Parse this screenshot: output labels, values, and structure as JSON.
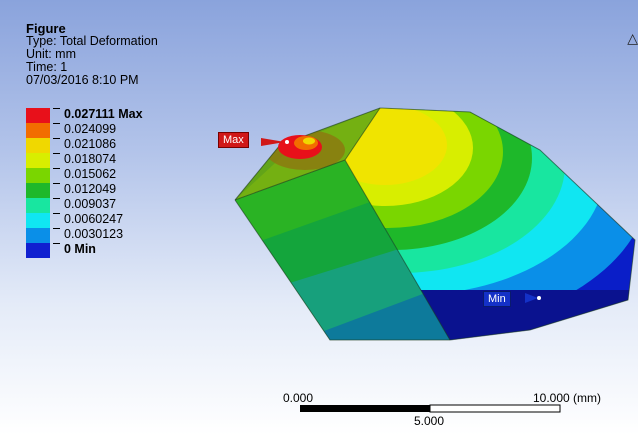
{
  "info": {
    "title": "Figure",
    "type": "Type: Total Deformation",
    "unit": "Unit: mm",
    "time": "Time: 1",
    "date": "07/03/2016 8:10 PM"
  },
  "legend": {
    "items": [
      {
        "label": "0.027111 Max",
        "color": "#e8101a",
        "bold": true
      },
      {
        "label": "0.024099",
        "color": "#f26d00",
        "bold": false
      },
      {
        "label": "0.021086",
        "color": "#f0d800",
        "bold": false
      },
      {
        "label": "0.018074",
        "color": "#d8ee00",
        "bold": false
      },
      {
        "label": "0.015062",
        "color": "#7ad600",
        "bold": false
      },
      {
        "label": "0.012049",
        "color": "#1eb82a",
        "bold": false
      },
      {
        "label": "0.009037",
        "color": "#18e6a0",
        "bold": false
      },
      {
        "label": "0.0060247",
        "color": "#10e6f2",
        "bold": false
      },
      {
        "label": "0.0030123",
        "color": "#0a8fe8",
        "bold": false
      },
      {
        "label": "0 Min",
        "color": "#1020d0",
        "bold": true
      }
    ]
  },
  "probes": {
    "max_label": "Max",
    "min_label": "Min"
  },
  "scale_bar": {
    "left": "0.000",
    "mid": "5.000",
    "right": "10.000 (mm)"
  },
  "triad_glyph": "△"
}
